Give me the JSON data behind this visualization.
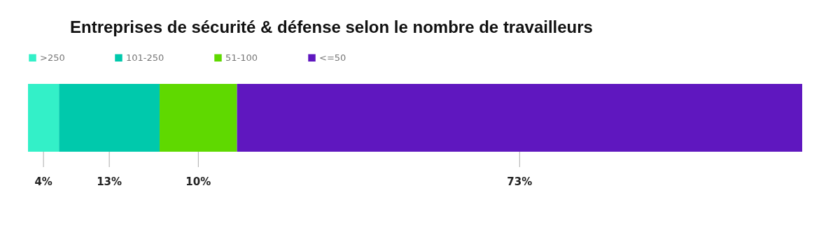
{
  "chart_data": {
    "type": "bar",
    "title": "Entreprises de sécurité & défense selon le nombre de travailleurs",
    "orientation": "horizontal",
    "stacked": true,
    "categories": [
      null
    ],
    "xlim": [
      0,
      100
    ],
    "tick_labels": false,
    "legend": "top left",
    "series": [
      {
        "name": ">250",
        "color": "#33f0c8",
        "values": [
          4
        ],
        "value_labels": [
          "4%"
        ]
      },
      {
        "name": "101-250",
        "color": "#00c9ac",
        "values": [
          13
        ],
        "value_labels": [
          "13%"
        ]
      },
      {
        "name": "51-100",
        "color": "#5fd900",
        "values": [
          10
        ],
        "value_labels": [
          "10%"
        ]
      },
      {
        "name": "<=50",
        "color": "#5f17bf",
        "values": [
          73
        ],
        "value_labels": [
          "73%"
        ]
      }
    ]
  }
}
